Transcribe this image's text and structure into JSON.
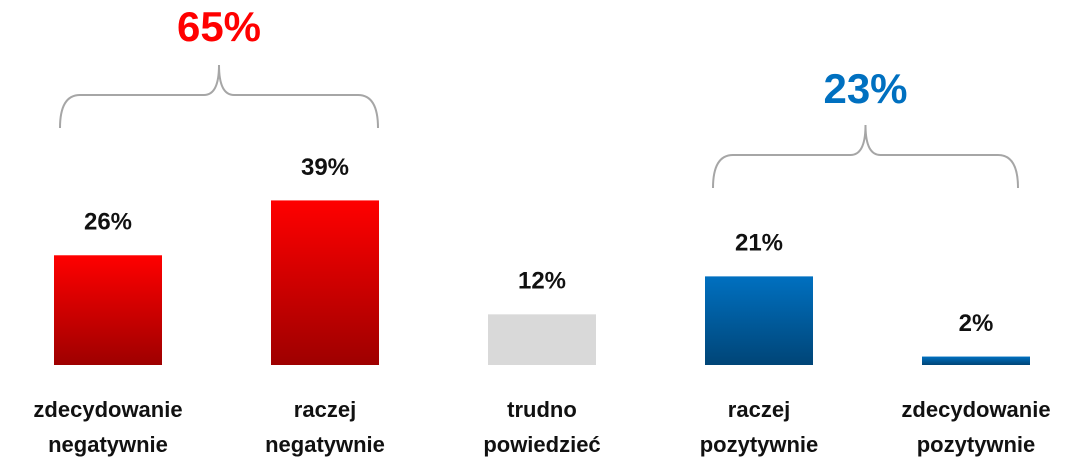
{
  "chart_data": {
    "type": "bar",
    "categories": [
      "zdecydowanie negatywnie",
      "raczej negatywnie",
      "trudno powiedzieć",
      "raczej pozytywnie",
      "zdecydowanie pozytywnie"
    ],
    "values": [
      26,
      39,
      12,
      21,
      2
    ],
    "value_labels": [
      "26%",
      "39%",
      "12%",
      "21%",
      "2%"
    ],
    "colors": [
      "#ff0000",
      "#ff0000",
      "#d9d9d9",
      "#0070c0",
      "#0070c0"
    ],
    "annotations": [
      {
        "text": "65%",
        "color": "#ff0000"
      },
      {
        "text": "23%",
        "color": "#0070c0"
      }
    ]
  }
}
